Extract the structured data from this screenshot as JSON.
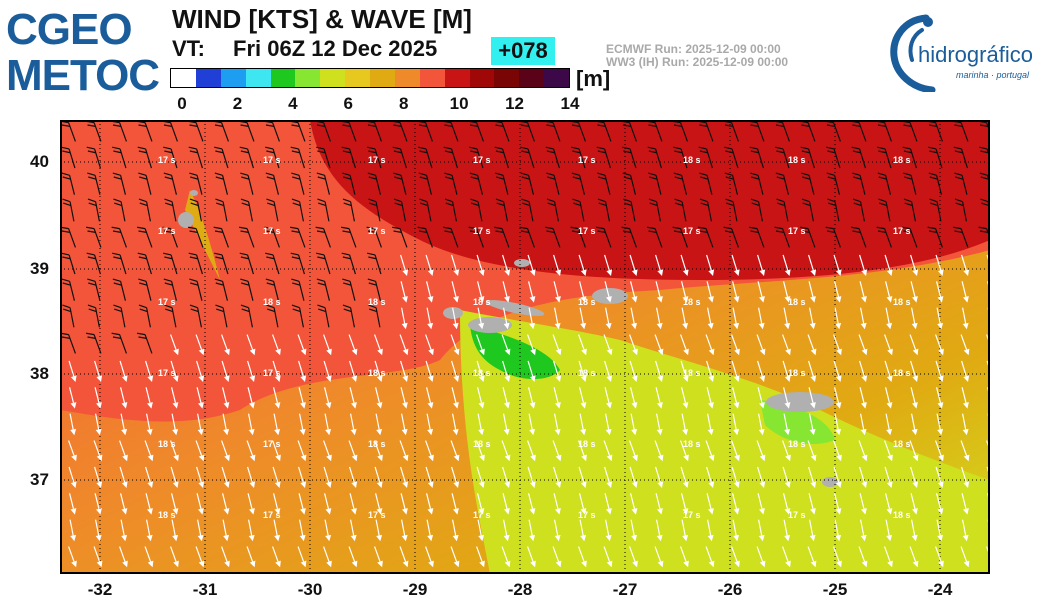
{
  "header": {
    "logo_left_line1": "CGEO",
    "logo_left_line2": "METOC",
    "title": "WIND [KTS] & WAVE [M]",
    "vt_label": "VT:",
    "vt_value": "Fri 06Z 12 Dec 2025",
    "lead_time": "+078",
    "run_line1": "ECMWF    Run: 2025-12-09 00:00",
    "run_line2": "WW3 (IH) Run: 2025-12-09 00:00",
    "logo_right_text": "hidrográfico",
    "logo_right_sub": "marinha · portugal"
  },
  "colorbar": {
    "unit": "[m]",
    "ticks": [
      "0",
      "2",
      "4",
      "6",
      "8",
      "10",
      "12",
      "14"
    ],
    "colors": [
      "#ffffff",
      "#1f3fd6",
      "#1e9ef0",
      "#3ee6f2",
      "#1ec81e",
      "#86e632",
      "#cfe01e",
      "#e6c81e",
      "#e0aa12",
      "#ef8a2a",
      "#f2553a",
      "#c81414",
      "#a00808",
      "#7a0505",
      "#5a0218",
      "#3c0848"
    ]
  },
  "map": {
    "lat_labels": [
      "40",
      "39",
      "38",
      "37"
    ],
    "lon_labels": [
      "-32",
      "-31",
      "-30",
      "-29",
      "-28",
      "-27",
      "-26",
      "-25",
      "-24"
    ],
    "wind_barb_direction": "north-northwest",
    "period_labels": [
      [
        "17 s",
        "17 s",
        "17 s",
        "17 s",
        "17 s",
        "18 s",
        "18 s",
        "18 s",
        "18 s"
      ],
      [
        "17 s",
        "17 s",
        "17 s",
        "17 s",
        "17 s",
        "17 s",
        "17 s",
        "17 s",
        "17 s"
      ],
      [
        "17 s",
        "18 s",
        "18 s",
        "18 s",
        "18 s",
        "18 s",
        "18 s",
        "18 s",
        "18 s"
      ],
      [
        "17 s",
        "17 s",
        "18 s",
        "18 s",
        "18 s",
        "18 s",
        "18 s",
        "18 s",
        "18 s"
      ],
      [
        "18 s",
        "17 s",
        "18 s",
        "18 s",
        "18 s",
        "18 s",
        "18 s",
        "18 s",
        "18 s"
      ],
      [
        "18 s",
        "17 s",
        "17 s",
        "17 s",
        "17 s",
        "17 s",
        "17 s",
        "18 s",
        "18 s"
      ]
    ],
    "islands": [
      "Corvo",
      "Flores",
      "Graciosa",
      "Terceira",
      "São Jorge",
      "Faial",
      "Pico",
      "São Miguel",
      "Santa Maria"
    ]
  }
}
